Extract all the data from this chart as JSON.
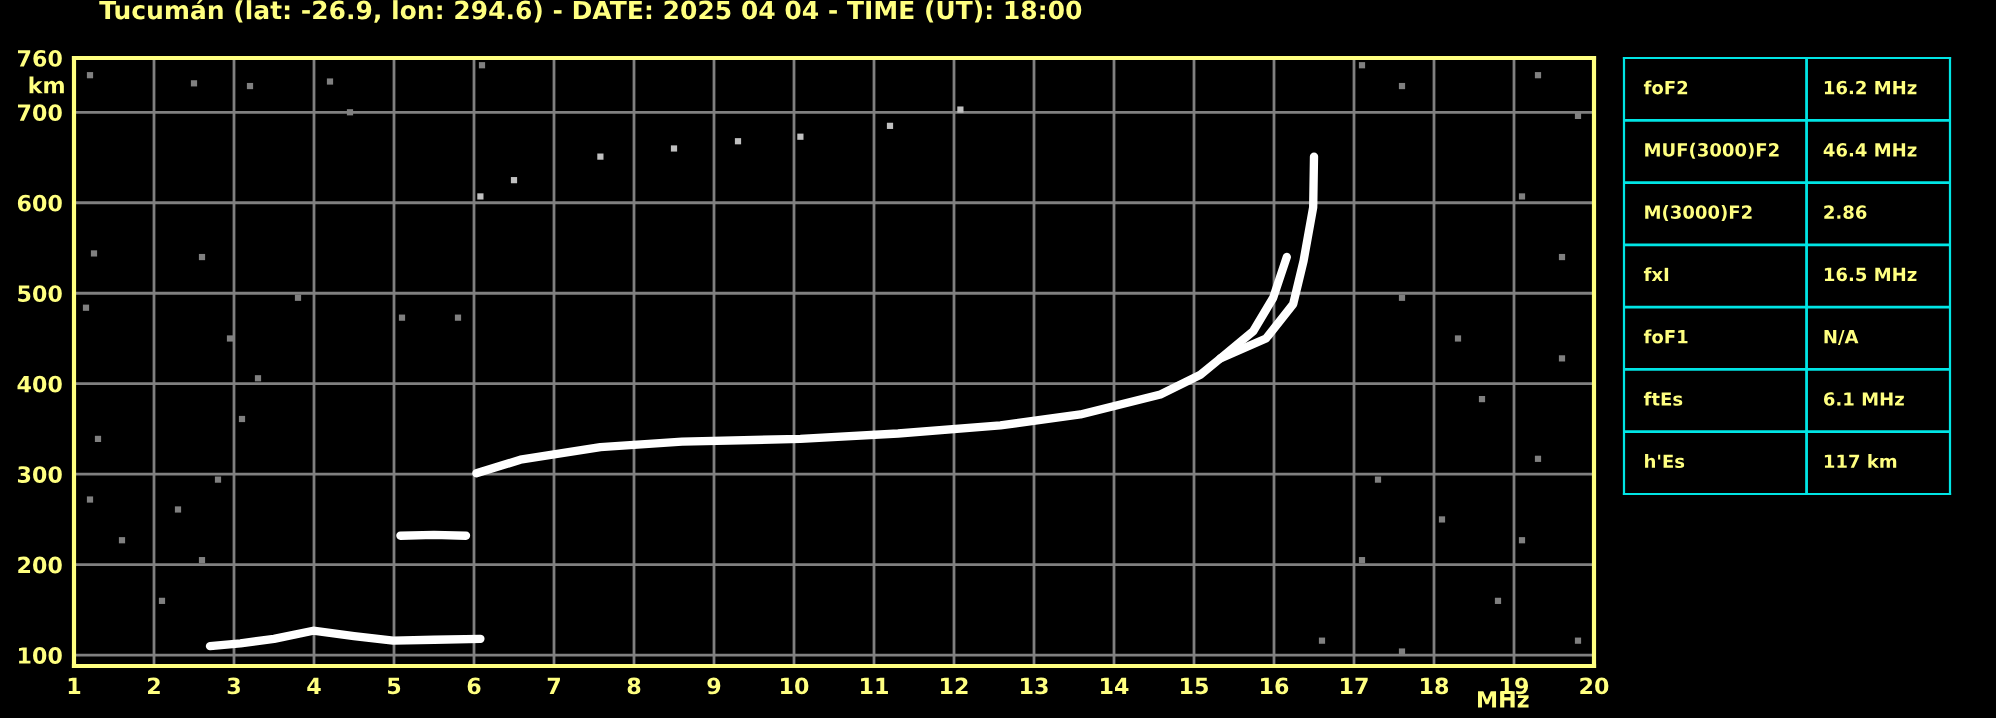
{
  "chart_data": [
    {
      "type": "scatter",
      "title": "Tucumán (lat: -26.9, lon: 294.6) - DATE: 2025 04 04 - TIME (UT): 18:00",
      "xlabel": "MHz",
      "ylabel": "km",
      "xlim": [
        1,
        20
      ],
      "ylim": [
        88,
        760
      ],
      "xticks": [
        1,
        2,
        3,
        4,
        5,
        6,
        7,
        8,
        9,
        10,
        11,
        12,
        13,
        14,
        15,
        16,
        17,
        18,
        19,
        20
      ],
      "yticks": [
        100,
        200,
        300,
        400,
        500,
        600,
        700,
        760
      ],
      "grid": true,
      "legend": false,
      "series": [
        {
          "type": "line",
          "color": "#ffffff",
          "marker": "none",
          "x": [
            6.03,
            6.58,
            7.58,
            8.6,
            10.08,
            11.3,
            12.58,
            13.58,
            14.58,
            15.08,
            15.33,
            15.74,
            15.99,
            16.16
          ],
          "values": [
            301,
            316,
            330,
            336,
            339,
            345,
            354,
            366,
            388,
            410,
            428,
            458,
            495,
            540
          ]
        },
        {
          "type": "line",
          "color": "#ffffff",
          "marker": "none",
          "x": [
            15.33,
            15.9,
            16.24,
            16.37,
            16.49,
            16.5
          ],
          "values": [
            428,
            450,
            488,
            536,
            595,
            651
          ]
        },
        {
          "type": "line",
          "color": "#ffffff",
          "marker": "none",
          "x": [
            2.7,
            3.08,
            3.5,
            3.99,
            4.5,
            4.99,
            5.5,
            6.08
          ],
          "values": [
            110,
            113,
            118,
            127,
            121,
            116,
            117,
            118
          ]
        },
        {
          "type": "line",
          "color": "#ffffff",
          "marker": "none",
          "x": [
            5.08,
            5.5,
            5.9
          ],
          "values": [
            232,
            233,
            232
          ]
        },
        {
          "type": "scatter",
          "color": "#c0c0c0",
          "marker": "square",
          "x": [
            6.08,
            6.5,
            7.58,
            8.5,
            9.3,
            10.08,
            11.2,
            12.08
          ],
          "values": [
            607,
            625,
            651,
            660,
            668,
            673,
            685,
            703
          ]
        },
        {
          "type": "scatter",
          "color": "#808080",
          "marker": "square",
          "x": [
            1.2,
            2.5,
            3.2,
            4.2,
            6.1,
            4.45,
            1.25,
            1.15,
            1.3,
            1.2,
            1.6,
            2.1,
            2.6,
            2.3,
            2.8,
            3.1,
            3.3,
            3.8,
            5.1,
            5.8,
            2.6,
            2.95,
            17.1,
            17.6,
            19.3,
            19.8,
            19.1,
            19.6,
            17.6,
            18.6,
            19.3,
            18.1,
            17.1,
            18.8,
            19.8,
            16.6,
            17.6,
            17.3,
            18.3,
            19.6,
            19.1
          ],
          "values": [
            741,
            732,
            729,
            734,
            752,
            700,
            544,
            484,
            339,
            272,
            227,
            160,
            205,
            261,
            294,
            361,
            406,
            495,
            473,
            473,
            540,
            450,
            752,
            729,
            741,
            696,
            607,
            540,
            495,
            383,
            317,
            250,
            205,
            160,
            116,
            116,
            104,
            294,
            450,
            428,
            227
          ]
        }
      ]
    },
    {
      "type": "other",
      "categories": [
        "foF2",
        "MUF(3000)F2",
        "M(3000)F2",
        "fxI",
        "foF1",
        "ftEs",
        "h'Es"
      ],
      "annotations": [
        "16.2 MHz",
        "46.4 MHz",
        "2.86",
        "16.5 MHz",
        "N/A",
        "6.1 MHz",
        "117 km"
      ]
    }
  ]
}
